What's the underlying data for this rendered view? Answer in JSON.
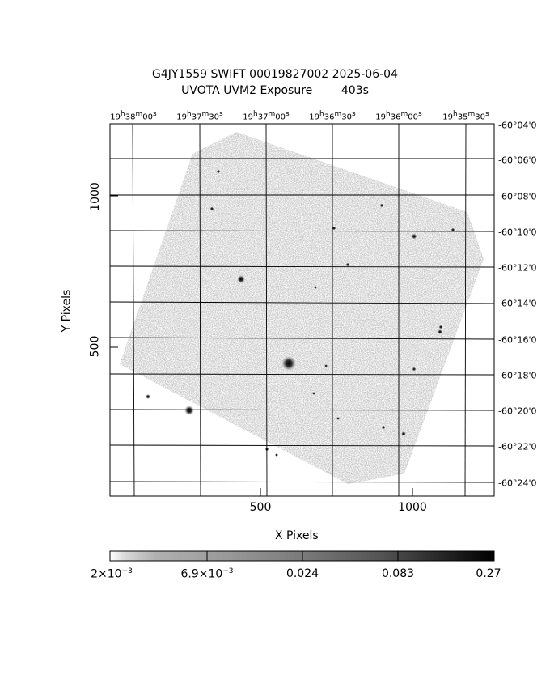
{
  "title": {
    "line1": "G4JY1559 SWIFT 00019827002 2025-06-04",
    "line2": "UVOTA UVM2 Exposure        403s"
  },
  "axes": {
    "xlabel": "X Pixels",
    "ylabel": "Y Pixels",
    "x_ticks": [
      "500",
      "1000"
    ],
    "y_ticks": [
      "500",
      "1000"
    ]
  },
  "ra_labels": [
    {
      "h": "19",
      "m": "38",
      "s": "00"
    },
    {
      "h": "19",
      "m": "37",
      "s": "30"
    },
    {
      "h": "19",
      "m": "37",
      "s": "00"
    },
    {
      "h": "19",
      "m": "36",
      "s": "30"
    },
    {
      "h": "19",
      "m": "36",
      "s": "00"
    },
    {
      "h": "19",
      "m": "35",
      "s": "30"
    }
  ],
  "dec_labels": [
    "-60°04'0",
    "-60°06'0",
    "-60°08'0",
    "-60°10'0",
    "-60°12'0",
    "-60°14'0",
    "-60°16'0",
    "-60°18'0",
    "-60°20'0",
    "-60°22'0",
    "-60°24'0"
  ],
  "colorbar": {
    "labels": [
      {
        "mant": "2×10",
        "exp": "−3"
      },
      {
        "mant": "6.9×10",
        "exp": "−3"
      },
      {
        "mant": "0.024",
        "exp": ""
      },
      {
        "mant": "0.083",
        "exp": ""
      },
      {
        "mant": "0.27",
        "exp": ""
      }
    ],
    "colors": {
      "low": "#ffffff",
      "high": "#000000"
    }
  },
  "image": {
    "background_color": "#ffffff",
    "field_gray": "#9a9a9a"
  }
}
